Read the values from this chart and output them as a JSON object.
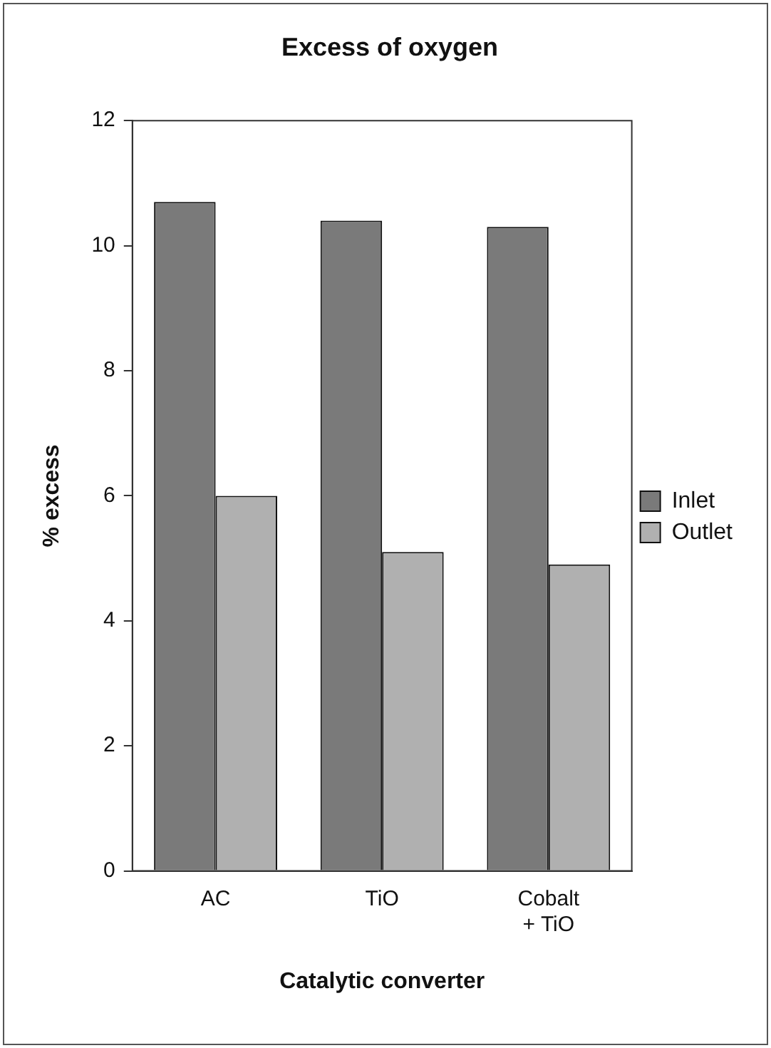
{
  "chart_data": {
    "type": "bar",
    "title": "Excess of oxygen",
    "xlabel": "Catalytic converter",
    "ylabel": "% excess",
    "categories": [
      "AC",
      "TiO",
      "Cobalt + TiO"
    ],
    "series": [
      {
        "name": "Inlet",
        "color": "#7a7a7a",
        "values": [
          10.7,
          10.4,
          10.3
        ]
      },
      {
        "name": "Outlet",
        "color": "#b0b0b0",
        "values": [
          6.0,
          5.1,
          4.9
        ]
      }
    ],
    "ylim": [
      0,
      12
    ],
    "yticks": [
      0,
      2,
      4,
      6,
      8,
      10,
      12
    ],
    "grid": false,
    "legend": "right"
  }
}
